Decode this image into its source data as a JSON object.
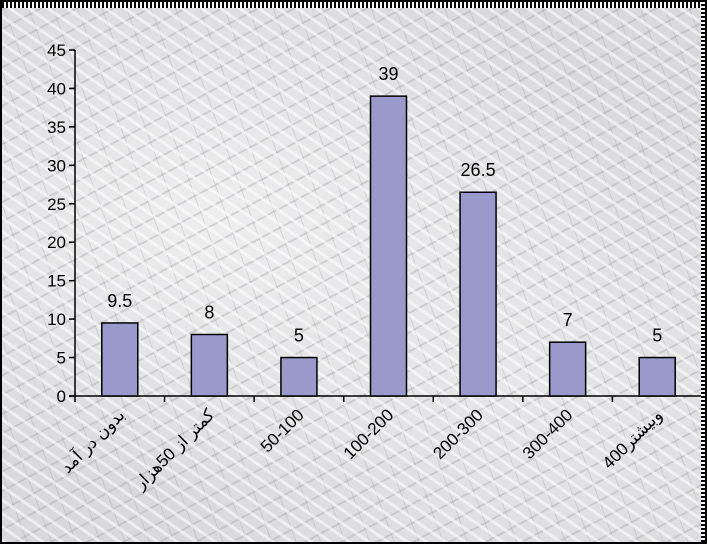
{
  "chart_data": {
    "type": "bar",
    "categories": [
      "بدون در آمد",
      "کمتر از 50هزار",
      "50-100",
      "100-200",
      "200-300",
      "300-400",
      "400وبیشتر"
    ],
    "values": [
      9.5,
      8,
      5,
      39,
      26.5,
      7,
      5
    ],
    "data_labels": [
      "9.5",
      "8",
      "5",
      "39",
      "26.5",
      "7",
      "5"
    ],
    "title": "",
    "xlabel": "",
    "ylabel": "",
    "ylim": [
      0,
      45
    ],
    "yticks": [
      "0",
      "5",
      "10",
      "15",
      "20",
      "25",
      "30",
      "35",
      "40",
      "45"
    ],
    "grid": false,
    "legend": "none",
    "bar_color": "#9999cc",
    "bar_border_color": "#000000"
  }
}
